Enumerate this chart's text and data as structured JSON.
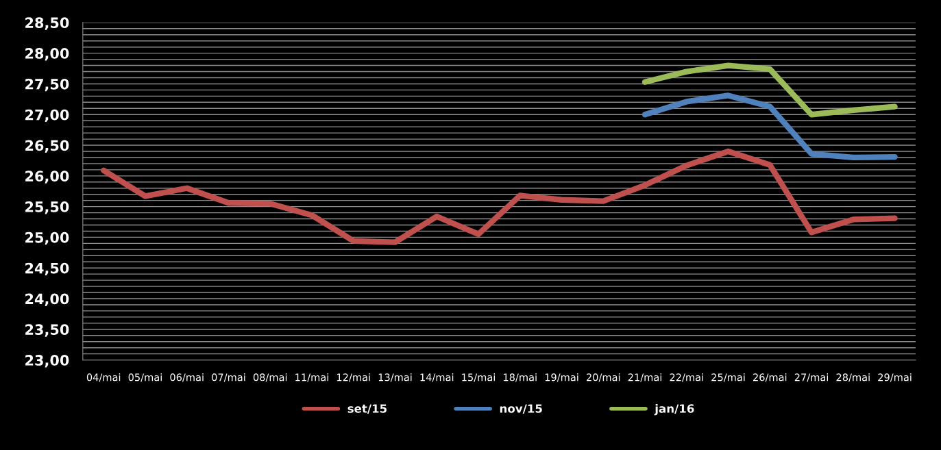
{
  "chart_data": {
    "type": "line",
    "categories": [
      "04/mai",
      "05/mai",
      "06/mai",
      "07/mai",
      "08/mai",
      "11/mai",
      "12/mai",
      "13/mai",
      "14/mai",
      "15/mai",
      "18/mai",
      "19/mai",
      "20/mai",
      "21/mai",
      "22/mai",
      "25/mai",
      "26/mai",
      "27/mai",
      "28/mai",
      "29/mai"
    ],
    "series": [
      {
        "name": "set/15",
        "color": "#c0504d",
        "values": [
          26.09,
          25.67,
          25.8,
          25.56,
          25.55,
          25.36,
          24.94,
          24.92,
          25.34,
          25.05,
          25.68,
          25.61,
          25.59,
          25.85,
          26.17,
          26.4,
          26.18,
          25.08,
          25.29,
          25.31
        ]
      },
      {
        "name": "nov/15",
        "color": "#4f81bd",
        "values": [
          null,
          null,
          null,
          null,
          null,
          null,
          null,
          null,
          null,
          null,
          null,
          null,
          null,
          27.0,
          27.21,
          27.31,
          27.13,
          26.36,
          26.3,
          26.31
        ]
      },
      {
        "name": "jan/16",
        "color": "#9bbb59",
        "values": [
          null,
          null,
          null,
          null,
          null,
          null,
          null,
          null,
          null,
          null,
          null,
          null,
          null,
          27.53,
          27.7,
          27.8,
          27.74,
          27.0,
          27.07,
          27.13
        ]
      }
    ],
    "ylim": [
      23.0,
      28.5
    ],
    "yticks": [
      {
        "value": 23.0,
        "label": "23,00"
      },
      {
        "value": 23.1,
        "label": null
      },
      {
        "value": 23.2,
        "label": null
      },
      {
        "value": 23.3,
        "label": null
      },
      {
        "value": 23.4,
        "label": null
      },
      {
        "value": 23.5,
        "label": "23,50"
      },
      {
        "value": 23.6,
        "label": null
      },
      {
        "value": 23.7,
        "label": null
      },
      {
        "value": 23.8,
        "label": null
      },
      {
        "value": 23.9,
        "label": null
      },
      {
        "value": 24.0,
        "label": "24,00"
      },
      {
        "value": 24.1,
        "label": null
      },
      {
        "value": 24.2,
        "label": null
      },
      {
        "value": 24.3,
        "label": null
      },
      {
        "value": 24.4,
        "label": null
      },
      {
        "value": 24.5,
        "label": "24,50"
      },
      {
        "value": 24.6,
        "label": null
      },
      {
        "value": 24.7,
        "label": null
      },
      {
        "value": 24.8,
        "label": null
      },
      {
        "value": 24.9,
        "label": null
      },
      {
        "value": 25.0,
        "label": "25,00"
      },
      {
        "value": 25.1,
        "label": null
      },
      {
        "value": 25.2,
        "label": null
      },
      {
        "value": 25.3,
        "label": null
      },
      {
        "value": 25.4,
        "label": null
      },
      {
        "value": 25.5,
        "label": "25,50"
      },
      {
        "value": 25.6,
        "label": null
      },
      {
        "value": 25.7,
        "label": null
      },
      {
        "value": 25.8,
        "label": null
      },
      {
        "value": 25.9,
        "label": null
      },
      {
        "value": 26.0,
        "label": "26,00"
      },
      {
        "value": 26.1,
        "label": null
      },
      {
        "value": 26.2,
        "label": null
      },
      {
        "value": 26.3,
        "label": null
      },
      {
        "value": 26.4,
        "label": null
      },
      {
        "value": 26.5,
        "label": "26,50"
      },
      {
        "value": 26.6,
        "label": null
      },
      {
        "value": 26.7,
        "label": null
      },
      {
        "value": 26.8,
        "label": null
      },
      {
        "value": 26.9,
        "label": null
      },
      {
        "value": 27.0,
        "label": "27,00"
      },
      {
        "value": 27.1,
        "label": null
      },
      {
        "value": 27.2,
        "label": null
      },
      {
        "value": 27.3,
        "label": null
      },
      {
        "value": 27.4,
        "label": null
      },
      {
        "value": 27.5,
        "label": "27,50"
      },
      {
        "value": 27.6,
        "label": null
      },
      {
        "value": 27.7,
        "label": null
      },
      {
        "value": 27.8,
        "label": null
      },
      {
        "value": 27.9,
        "label": null
      },
      {
        "value": 28.0,
        "label": "28,00"
      },
      {
        "value": 28.1,
        "label": null
      },
      {
        "value": 28.2,
        "label": null
      },
      {
        "value": 28.3,
        "label": null
      },
      {
        "value": 28.4,
        "label": null
      },
      {
        "value": 28.5,
        "label": "28,50"
      }
    ],
    "grid": "y",
    "legend": "bottom",
    "marker": "none",
    "line_style": "solid"
  }
}
